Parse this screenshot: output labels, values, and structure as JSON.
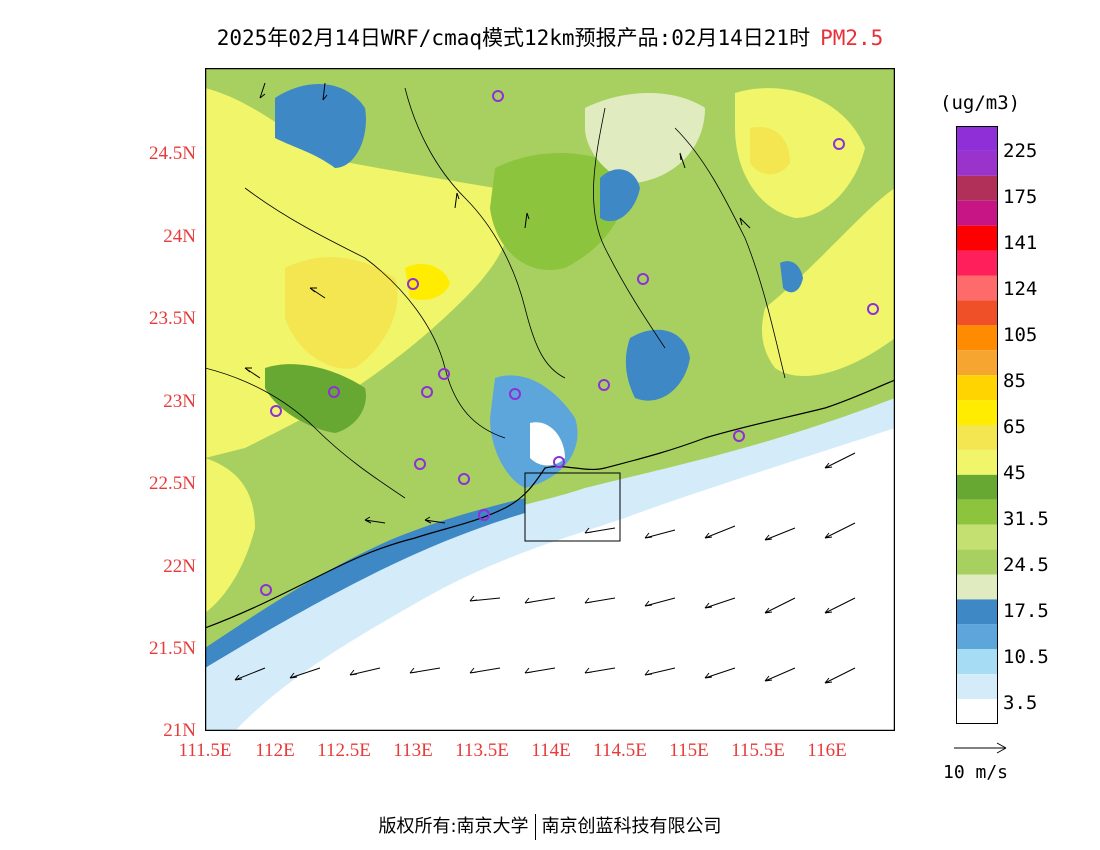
{
  "title": {
    "main": "2025年02月14日WRF/cmaq模式12km预报产品:02月14日21时",
    "pollutant": "PM2.5"
  },
  "axes": {
    "lat_labels": [
      "24.5N",
      "24N",
      "23.5N",
      "23N",
      "22.5N",
      "22N",
      "21.5N",
      "21N"
    ],
    "lon_labels": [
      "111.5E",
      "112E",
      "112.5E",
      "113E",
      "113.5E",
      "114E",
      "114.5E",
      "115E",
      "115.5E",
      "116E"
    ]
  },
  "colorbar": {
    "unit": "(ug/m3)",
    "labels": [
      "225",
      "175",
      "141",
      "124",
      "105",
      "85",
      "65",
      "45",
      "31.5",
      "24.5",
      "17.5",
      "10.5",
      "3.5"
    ],
    "colors": [
      "#8e2fd8",
      "#9a33cc",
      "#b0305a",
      "#c81585",
      "#ff0000",
      "#ff1f5a",
      "#ff6a6a",
      "#f05028",
      "#ff8c00",
      "#f5a530",
      "#ffd400",
      "#ffec00",
      "#f3e650",
      "#f0f56a",
      "#66a832",
      "#8cc43e",
      "#c3e070",
      "#a8d060",
      "#e0ecc0",
      "#3e88c6",
      "#5ca6dc",
      "#a6dcf4",
      "#d4ecfa",
      "#ffffff"
    ]
  },
  "wind_legend": {
    "label": "10 m/s"
  },
  "footer": {
    "left": "版权所有:南京大学",
    "right": "南京创蓝科技有限公司"
  },
  "colors": {
    "axis_label": "#e83a3a",
    "yellow": "#f0f56a",
    "green": "#8cc43e",
    "blue": "#3e88c6"
  }
}
